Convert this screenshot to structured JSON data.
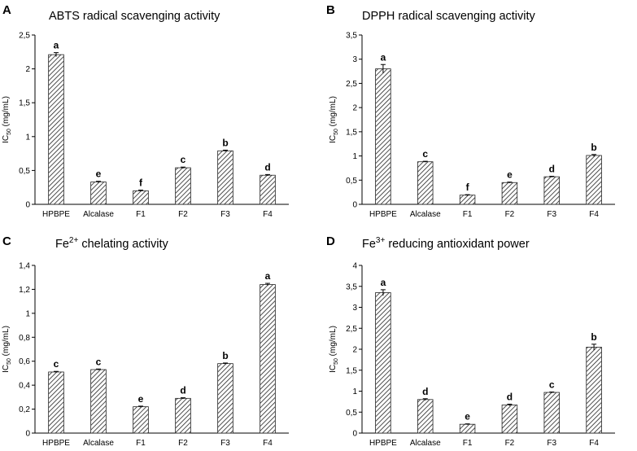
{
  "colors": {
    "bar_fill": "#ffffff",
    "bar_hatch": "#222222",
    "axis": "#000000",
    "errorbar": "#000000"
  },
  "chart_data": [
    {
      "panel": "A",
      "type": "bar",
      "title": "ABTS radical scavenging activity",
      "title_parts": {
        "pre": "ABTS radical scavenging activity",
        "sup": "",
        "post": ""
      },
      "ylabel": {
        "main": "IC",
        "sub": "50",
        "rest": " (mg/mL)"
      },
      "xlabel": "",
      "categories": [
        "HPBPE",
        "Alcalase",
        "F1",
        "F2",
        "F3",
        "F4"
      ],
      "values": [
        2.21,
        0.33,
        0.2,
        0.54,
        0.79,
        0.43
      ],
      "errors": [
        0.03,
        0.01,
        0.01,
        0.01,
        0.01,
        0.01
      ],
      "letters": [
        "a",
        "e",
        "f",
        "c",
        "b",
        "d"
      ],
      "ylim": [
        0,
        2.5
      ],
      "yticks": [
        0,
        0.5,
        1,
        1.5,
        2,
        2.5
      ],
      "ytick_labels": [
        "0",
        "0,5",
        "1",
        "1,5",
        "2",
        "2,5"
      ]
    },
    {
      "panel": "B",
      "type": "bar",
      "title": "DPPH radical scavenging activity",
      "title_parts": {
        "pre": "DPPH radical scavenging activity",
        "sup": "",
        "post": ""
      },
      "ylabel": {
        "main": "IC",
        "sub": "50",
        "rest": " (mg/mL)"
      },
      "xlabel": "",
      "categories": [
        "HPBPE",
        "Alcalase",
        "F1",
        "F2",
        "F3",
        "F4"
      ],
      "values": [
        2.8,
        0.88,
        0.19,
        0.45,
        0.57,
        1.01
      ],
      "errors": [
        0.09,
        0.01,
        0.01,
        0.01,
        0.01,
        0.02
      ],
      "letters": [
        "a",
        "c",
        "f",
        "e",
        "d",
        "b"
      ],
      "ylim": [
        0,
        3.5
      ],
      "yticks": [
        0,
        0.5,
        1,
        1.5,
        2,
        2.5,
        3,
        3.5
      ],
      "ytick_labels": [
        "0",
        "0,5",
        "1",
        "1,5",
        "2",
        "2,5",
        "3",
        "3,5"
      ]
    },
    {
      "panel": "C",
      "type": "bar",
      "title": "Fe2+ chelating activity",
      "title_parts": {
        "pre": "Fe",
        "sup": "2+",
        "post": " chelating activity"
      },
      "ylabel": {
        "main": "IC",
        "sub": "50",
        "rest": " (mg/mL)"
      },
      "xlabel": "",
      "categories": [
        "HPBPE",
        "Alcalase",
        "F1",
        "F2",
        "F3",
        "F4"
      ],
      "values": [
        0.51,
        0.53,
        0.22,
        0.29,
        0.58,
        1.24
      ],
      "errors": [
        0.005,
        0.005,
        0.005,
        0.005,
        0.005,
        0.01
      ],
      "letters": [
        "c",
        "c",
        "e",
        "d",
        "b",
        "a"
      ],
      "ylim": [
        0,
        1.4
      ],
      "yticks": [
        0,
        0.2,
        0.4,
        0.6,
        0.8,
        1,
        1.2,
        1.4
      ],
      "ytick_labels": [
        "0",
        "0,2",
        "0,4",
        "0,6",
        "0,8",
        "1",
        "1,2",
        "1,4"
      ]
    },
    {
      "panel": "D",
      "type": "bar",
      "title": "Fe3+ reducing antioxidant power",
      "title_parts": {
        "pre": "Fe",
        "sup": "3+",
        "post": " reducing antioxidant power"
      },
      "ylabel": {
        "main": "IC",
        "sub": "50",
        "rest": " (mg/mL)"
      },
      "xlabel": "",
      "categories": [
        "HPBPE",
        "Alcalase",
        "F1",
        "F2",
        "F3",
        "F4"
      ],
      "values": [
        3.35,
        0.8,
        0.21,
        0.67,
        0.97,
        2.05
      ],
      "errors": [
        0.07,
        0.02,
        0.01,
        0.02,
        0.01,
        0.07
      ],
      "letters": [
        "a",
        "d",
        "e",
        "d",
        "c",
        "b"
      ],
      "ylim": [
        0,
        4
      ],
      "yticks": [
        0,
        0.5,
        1,
        1.5,
        2,
        2.5,
        3,
        3.5,
        4
      ],
      "ytick_labels": [
        "0",
        "0,5",
        "1",
        "1,5",
        "2",
        "2,5",
        "3",
        "3,5",
        "4"
      ]
    }
  ]
}
